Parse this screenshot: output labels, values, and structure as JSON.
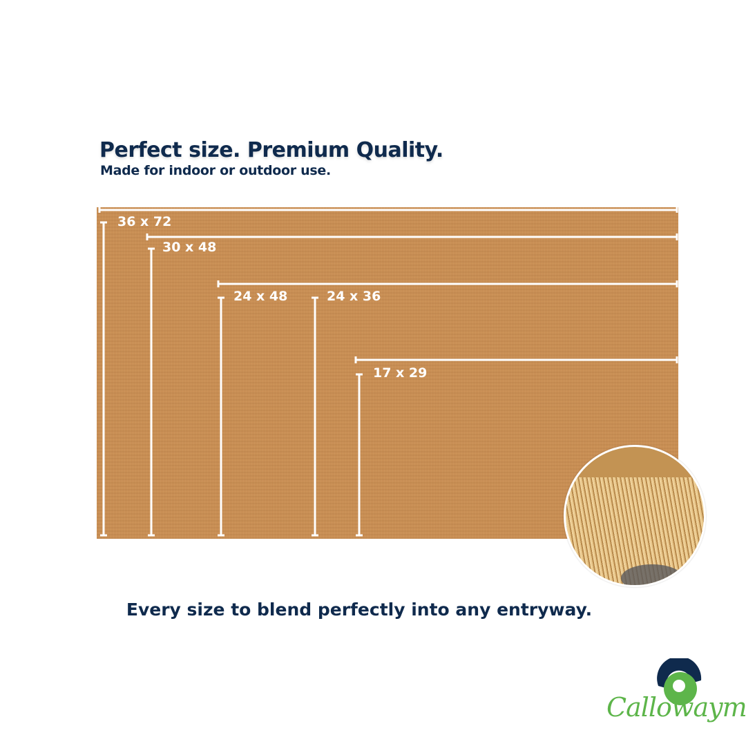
{
  "header": {
    "title": "Perfect size. Premium Quality.",
    "subtitle": "Made for indoor or outdoor use."
  },
  "sizes": [
    {
      "label": "36 x 72"
    },
    {
      "label": "30 x 48"
    },
    {
      "label": "24 x 48"
    },
    {
      "label": "24 x 36"
    },
    {
      "label": "17 x 29"
    }
  ],
  "tagline": "Every size to blend perfectly into any entryway.",
  "brand": {
    "name": "Callowaymills",
    "colors": {
      "navy": "#0f2a4d",
      "green": "#5db54a",
      "mat": "#c98f55"
    }
  }
}
